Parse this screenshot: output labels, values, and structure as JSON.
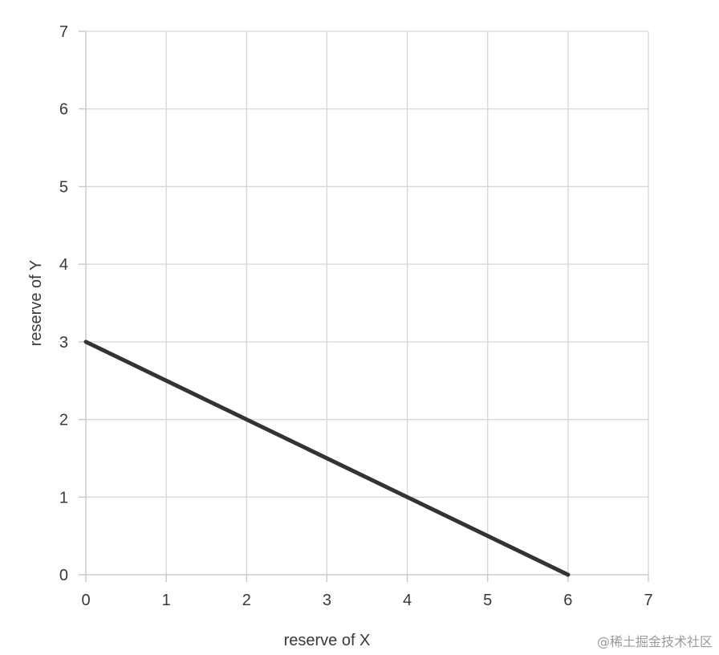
{
  "chart_data": {
    "type": "line",
    "title": "",
    "xlabel": "reserve of X",
    "ylabel": "reserve of Y",
    "xlim": [
      0,
      7
    ],
    "ylim": [
      0,
      7
    ],
    "xticks": [
      0,
      1,
      2,
      3,
      4,
      5,
      6,
      7
    ],
    "yticks": [
      0,
      1,
      2,
      3,
      4,
      5,
      6,
      7
    ],
    "grid": true,
    "series": [
      {
        "color": "#333333",
        "points": [
          [
            0,
            3
          ],
          [
            6,
            0
          ]
        ]
      }
    ]
  },
  "watermark": "@稀土掘金技术社区"
}
